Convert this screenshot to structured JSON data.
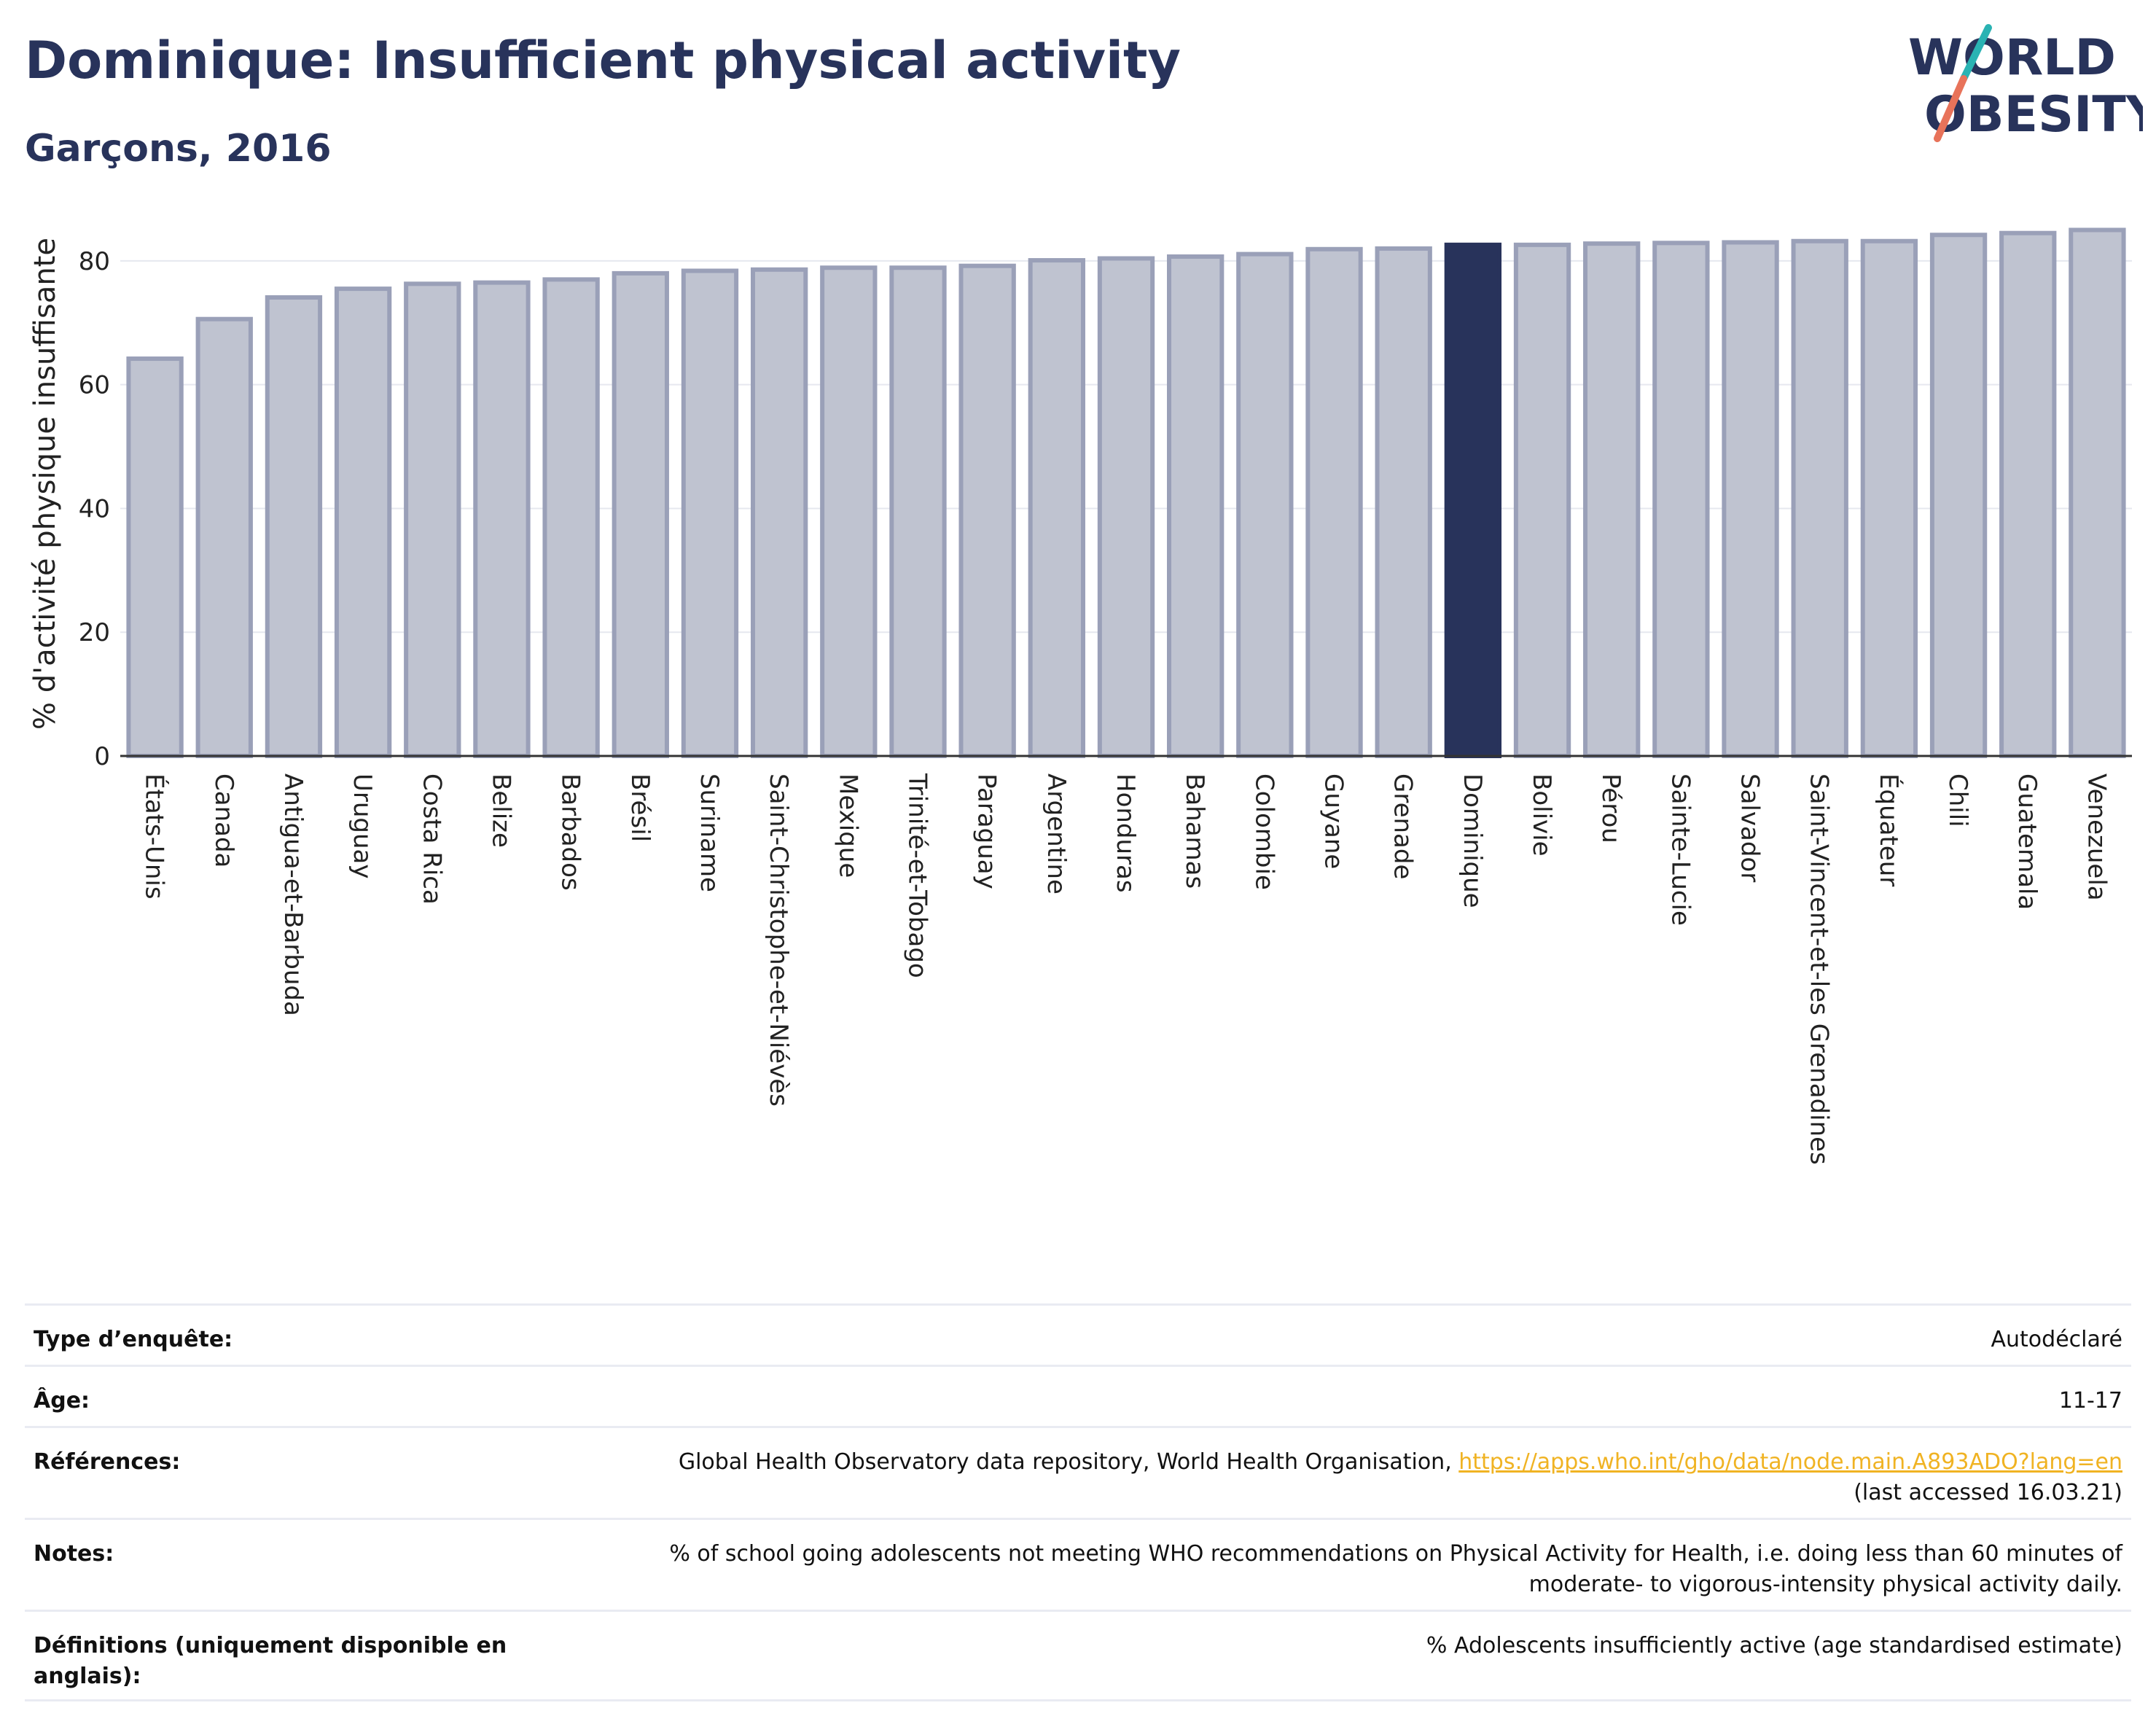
{
  "header": {
    "title": "Dominique: Insufficient physical activity",
    "subtitle": "Garçons, 2016"
  },
  "logo": {
    "line1": "WORLD",
    "line2": "OBESITY"
  },
  "chart_data": {
    "type": "bar",
    "ylabel": "% d'activité physique insuffisante",
    "xlabel": "",
    "ylim": [
      0,
      88
    ],
    "yticks": [
      0,
      20,
      40,
      60,
      80
    ],
    "grid": true,
    "highlight": "Dominique",
    "colors": {
      "bar": "#bfc3d0",
      "bar_edge": "#9aa0b8",
      "highlight": "#28335b"
    },
    "categories": [
      "États-Unis",
      "Canada",
      "Antigua-et-Barbuda",
      "Uruguay",
      "Costa Rica",
      "Belize",
      "Barbados",
      "Brésil",
      "Suriname",
      "Saint-Christophe-et-Niévès",
      "Mexique",
      "Trinité-et-Tobago",
      "Paraguay",
      "Argentine",
      "Honduras",
      "Bahamas",
      "Colombie",
      "Guyane",
      "Grenade",
      "Dominique",
      "Bolivie",
      "Pérou",
      "Sainte-Lucie",
      "Salvador",
      "Saint-Vincent-et-les Grenadines",
      "Équateur",
      "Chili",
      "Guatemala",
      "Venezuela"
    ],
    "values": [
      64.2,
      70.6,
      74.1,
      75.5,
      76.3,
      76.5,
      77.0,
      78.0,
      78.4,
      78.6,
      78.9,
      78.9,
      79.2,
      80.1,
      80.4,
      80.7,
      81.1,
      81.9,
      82.0,
      82.6,
      82.6,
      82.8,
      82.9,
      83.0,
      83.2,
      83.2,
      84.2,
      84.5,
      85.0
    ]
  },
  "info": {
    "survey_type": {
      "label": "Type d’enquête:",
      "value": "Autodéclaré"
    },
    "age": {
      "label": "Âge:",
      "value": "11-17"
    },
    "references": {
      "label": "Références:",
      "text": "Global Health Observatory data repository, World Health Organisation, ",
      "link": "https://apps.who.int/gho/data/node.main.A893ADO?lang=en",
      "accessed": "(last accessed 16.03.21)"
    },
    "notes": {
      "label": "Notes:",
      "line1": "% of school going adolescents not meeting WHO recommendations on Physical Activity for Health, i.e. doing less than 60 minutes of",
      "line2": "moderate- to vigorous-intensity physical activity daily."
    },
    "definitions": {
      "label": "Définitions (uniquement disponible en anglais):",
      "value": "% Adolescents insufficiently active (age standardised estimate)"
    }
  }
}
